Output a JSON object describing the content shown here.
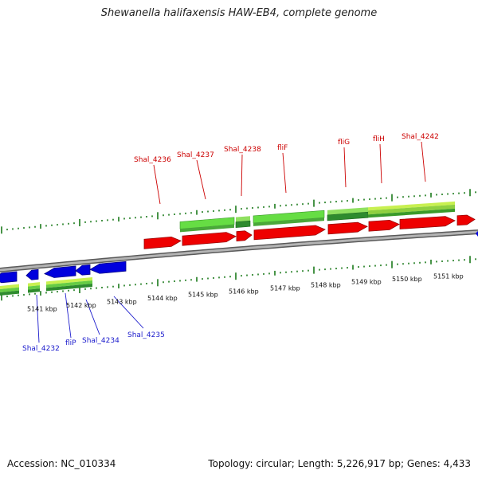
{
  "title": "Shewanella halifaxensis HAW-EB4, complete genome",
  "footer": {
    "accession": "Accession: NC_010334",
    "topology": "Topology: circular; Length: 5,226,917 bp; Genes: 4,433"
  },
  "colors": {
    "forward_gene": "#ee0000",
    "reverse_gene": "#0000dd",
    "forward_label": "#cc0000",
    "reverse_label": "#1a1acc",
    "feature_dark_green": "#2e8b2e",
    "feature_light_green": "#66dd44",
    "feature_yellow_green": "#c8f050",
    "backbone": "#888888",
    "tick_green": "#1a7a1a"
  },
  "kbp_labels": [
    "5141 kbp",
    "5142 kbp",
    "5143 kbp",
    "5144 kbp",
    "5145 kbp",
    "5146 kbp",
    "5147 kbp",
    "5148 kbp",
    "5149 kbp",
    "5150 kbp",
    "5151 kbp"
  ],
  "forward_gene_labels": [
    "Shal_4236",
    "Shal_4237",
    "Shal_4238",
    "fliF",
    "fliG",
    "fliH",
    "Shal_4242"
  ],
  "reverse_gene_labels": [
    "Shal_4232",
    "fliP",
    "Shal_4234",
    "Shal_4235"
  ]
}
